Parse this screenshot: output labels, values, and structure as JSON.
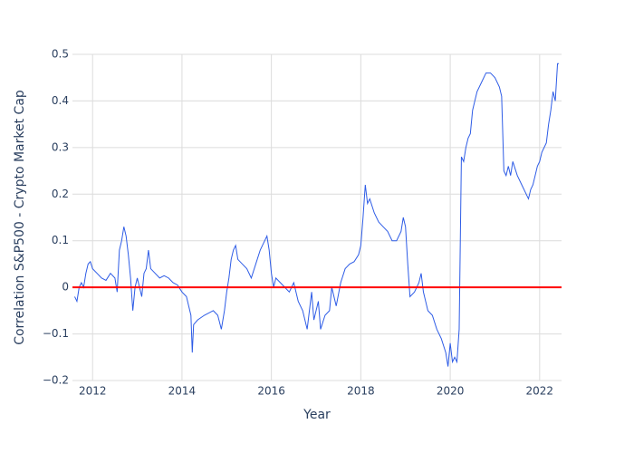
{
  "chart_data": {
    "type": "line",
    "x_label": "Year",
    "y_label": "Correlation S&P500 - Crypto Market Cap",
    "xlim": [
      2011.55,
      2022.49
    ],
    "xticks": [
      2012,
      2014,
      2016,
      2018,
      2020,
      2022
    ],
    "ylim": [
      -0.2,
      0.5
    ],
    "yticks": [
      {
        "value": -0.2,
        "label": "−0.2"
      },
      {
        "value": -0.1,
        "label": "−0.1"
      },
      0,
      0.1,
      0.2,
      0.3,
      0.4,
      0.5
    ],
    "grid": true,
    "reference_line": {
      "value": 0,
      "color": "#ff0000"
    },
    "series": [
      {
        "color": "#2e5ce6",
        "x": [
          2011.6,
          2011.65,
          2011.7,
          2011.75,
          2011.8,
          2011.85,
          2011.9,
          2011.95,
          2012.0,
          2012.1,
          2012.2,
          2012.3,
          2012.4,
          2012.5,
          2012.55,
          2012.6,
          2012.65,
          2012.7,
          2012.75,
          2012.8,
          2012.85,
          2012.9,
          2012.95,
          2013.0,
          2013.05,
          2013.1,
          2013.15,
          2013.2,
          2013.25,
          2013.3,
          2013.4,
          2013.5,
          2013.6,
          2013.7,
          2013.8,
          2013.9,
          2014.0,
          2014.1,
          2014.15,
          2014.2,
          2014.23,
          2014.26,
          2014.35,
          2014.5,
          2014.7,
          2014.8,
          2014.88,
          2014.95,
          2015.0,
          2015.05,
          2015.1,
          2015.15,
          2015.2,
          2015.25,
          2015.35,
          2015.45,
          2015.55,
          2015.65,
          2015.75,
          2015.85,
          2015.9,
          2015.95,
          2016.0,
          2016.05,
          2016.1,
          2016.2,
          2016.3,
          2016.4,
          2016.5,
          2016.6,
          2016.7,
          2016.8,
          2016.9,
          2016.95,
          2017.05,
          2017.1,
          2017.2,
          2017.3,
          2017.35,
          2017.45,
          2017.55,
          2017.65,
          2017.75,
          2017.85,
          2017.95,
          2018.0,
          2018.05,
          2018.1,
          2018.15,
          2018.2,
          2018.3,
          2018.4,
          2018.5,
          2018.6,
          2018.7,
          2018.8,
          2018.9,
          2018.95,
          2019.0,
          2019.05,
          2019.1,
          2019.2,
          2019.3,
          2019.35,
          2019.4,
          2019.45,
          2019.5,
          2019.6,
          2019.7,
          2019.8,
          2019.9,
          2019.95,
          2020.0,
          2020.05,
          2020.1,
          2020.15,
          2020.2,
          2020.25,
          2020.3,
          2020.35,
          2020.4,
          2020.45,
          2020.5,
          2020.6,
          2020.7,
          2020.8,
          2020.9,
          2021.0,
          2021.1,
          2021.15,
          2021.2,
          2021.25,
          2021.3,
          2021.35,
          2021.4,
          2021.5,
          2021.6,
          2021.7,
          2021.75,
          2021.8,
          2021.85,
          2021.9,
          2021.95,
          2022.0,
          2022.05,
          2022.1,
          2022.15,
          2022.2,
          2022.25,
          2022.3,
          2022.35,
          2022.4,
          2022.43
        ],
        "values": [
          -0.02,
          -0.03,
          0.0,
          0.01,
          0.0,
          0.03,
          0.05,
          0.055,
          0.04,
          0.03,
          0.02,
          0.015,
          0.03,
          0.02,
          -0.01,
          0.08,
          0.1,
          0.13,
          0.11,
          0.07,
          0.02,
          -0.05,
          0.0,
          0.02,
          0.0,
          -0.02,
          0.03,
          0.04,
          0.08,
          0.04,
          0.03,
          0.02,
          0.025,
          0.02,
          0.01,
          0.005,
          -0.01,
          -0.02,
          -0.04,
          -0.06,
          -0.14,
          -0.08,
          -0.07,
          -0.06,
          -0.05,
          -0.06,
          -0.09,
          -0.05,
          -0.01,
          0.02,
          0.06,
          0.08,
          0.09,
          0.06,
          0.05,
          0.04,
          0.02,
          0.05,
          0.08,
          0.1,
          0.11,
          0.08,
          0.03,
          0.0,
          0.02,
          0.01,
          0.0,
          -0.01,
          0.01,
          -0.03,
          -0.05,
          -0.09,
          -0.01,
          -0.07,
          -0.03,
          -0.09,
          -0.06,
          -0.05,
          0.0,
          -0.04,
          0.01,
          0.04,
          0.05,
          0.055,
          0.07,
          0.09,
          0.15,
          0.22,
          0.18,
          0.19,
          0.16,
          0.14,
          0.13,
          0.12,
          0.1,
          0.1,
          0.12,
          0.15,
          0.13,
          0.05,
          -0.02,
          -0.01,
          0.01,
          0.03,
          -0.01,
          -0.03,
          -0.05,
          -0.06,
          -0.09,
          -0.11,
          -0.14,
          -0.17,
          -0.12,
          -0.16,
          -0.15,
          -0.16,
          -0.09,
          0.28,
          0.27,
          0.3,
          0.32,
          0.33,
          0.38,
          0.42,
          0.44,
          0.46,
          0.46,
          0.45,
          0.43,
          0.41,
          0.25,
          0.24,
          0.26,
          0.24,
          0.27,
          0.24,
          0.22,
          0.2,
          0.19,
          0.21,
          0.22,
          0.24,
          0.26,
          0.27,
          0.29,
          0.3,
          0.31,
          0.35,
          0.38,
          0.42,
          0.4,
          0.48,
          0.48
        ]
      }
    ]
  }
}
